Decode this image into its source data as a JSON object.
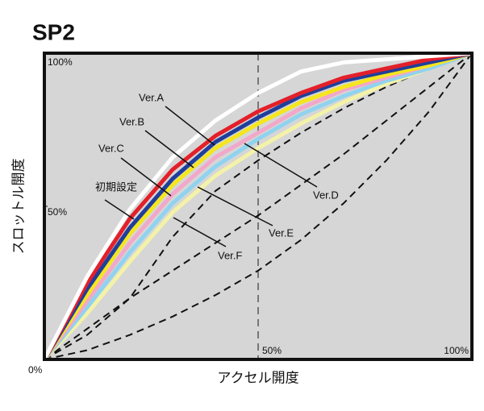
{
  "chart_data": {
    "type": "line",
    "title": "SP2",
    "x_label": "アクセル開度",
    "y_label": "スロットル開度",
    "x": [
      0,
      10,
      20,
      30,
      40,
      50,
      60,
      70,
      80,
      90,
      100
    ],
    "series": [
      {
        "name": "初期設定",
        "color": "#ffffff",
        "values": [
          0,
          27,
          49,
          66,
          78,
          87,
          94,
          97,
          98,
          99,
          100
        ]
      },
      {
        "name": "Ver.A",
        "color": "#e3202a",
        "values": [
          0,
          25,
          46,
          62,
          73,
          81,
          87,
          92,
          95,
          98,
          100
        ]
      },
      {
        "name": "Ver.B",
        "color": "#1f3f9a",
        "values": [
          0,
          23,
          43,
          59,
          71,
          79,
          86,
          91,
          94,
          97,
          100
        ]
      },
      {
        "name": "Ver.C",
        "color": "#f5e61e",
        "values": [
          0,
          21,
          41,
          57,
          69,
          77,
          84,
          89,
          93,
          96,
          100
        ]
      },
      {
        "name": "Ver.D",
        "color": "#f2a8c8",
        "values": [
          0,
          19,
          38,
          54,
          66,
          74,
          82,
          88,
          92,
          96,
          100
        ]
      },
      {
        "name": "Ver.E",
        "color": "#8fd3ef",
        "values": [
          0,
          17,
          35,
          51,
          63,
          72,
          80,
          86,
          91,
          95,
          100
        ]
      },
      {
        "name": "Ver.F",
        "color": "#f4f2a8",
        "values": [
          0,
          15,
          32,
          48,
          60,
          69,
          77,
          84,
          90,
          95,
          100
        ]
      },
      {
        "color": "#111111",
        "style": "dashed",
        "values": [
          0,
          8,
          20,
          40,
          55,
          65,
          74,
          82,
          89,
          95,
          100
        ]
      },
      {
        "color": "#111111",
        "style": "dashed",
        "values": [
          0,
          10,
          20,
          29,
          38,
          47,
          57,
          67,
          78,
          89,
          100
        ]
      },
      {
        "color": "#111111",
        "style": "dashed",
        "values": [
          0,
          3,
          8,
          14,
          21,
          29,
          39,
          51,
          65,
          81,
          100
        ]
      }
    ],
    "xlim": [
      0,
      100
    ],
    "ylim": [
      0,
      100
    ],
    "xticks": [
      {
        "value": 0,
        "label": "0%"
      },
      {
        "value": 50,
        "label": "50%"
      },
      {
        "value": 100,
        "label": "100%"
      }
    ],
    "yticks": [
      {
        "value": 50,
        "label": "50%"
      },
      {
        "value": 100,
        "label": "100%"
      }
    ],
    "background": "#d6d6d6"
  }
}
